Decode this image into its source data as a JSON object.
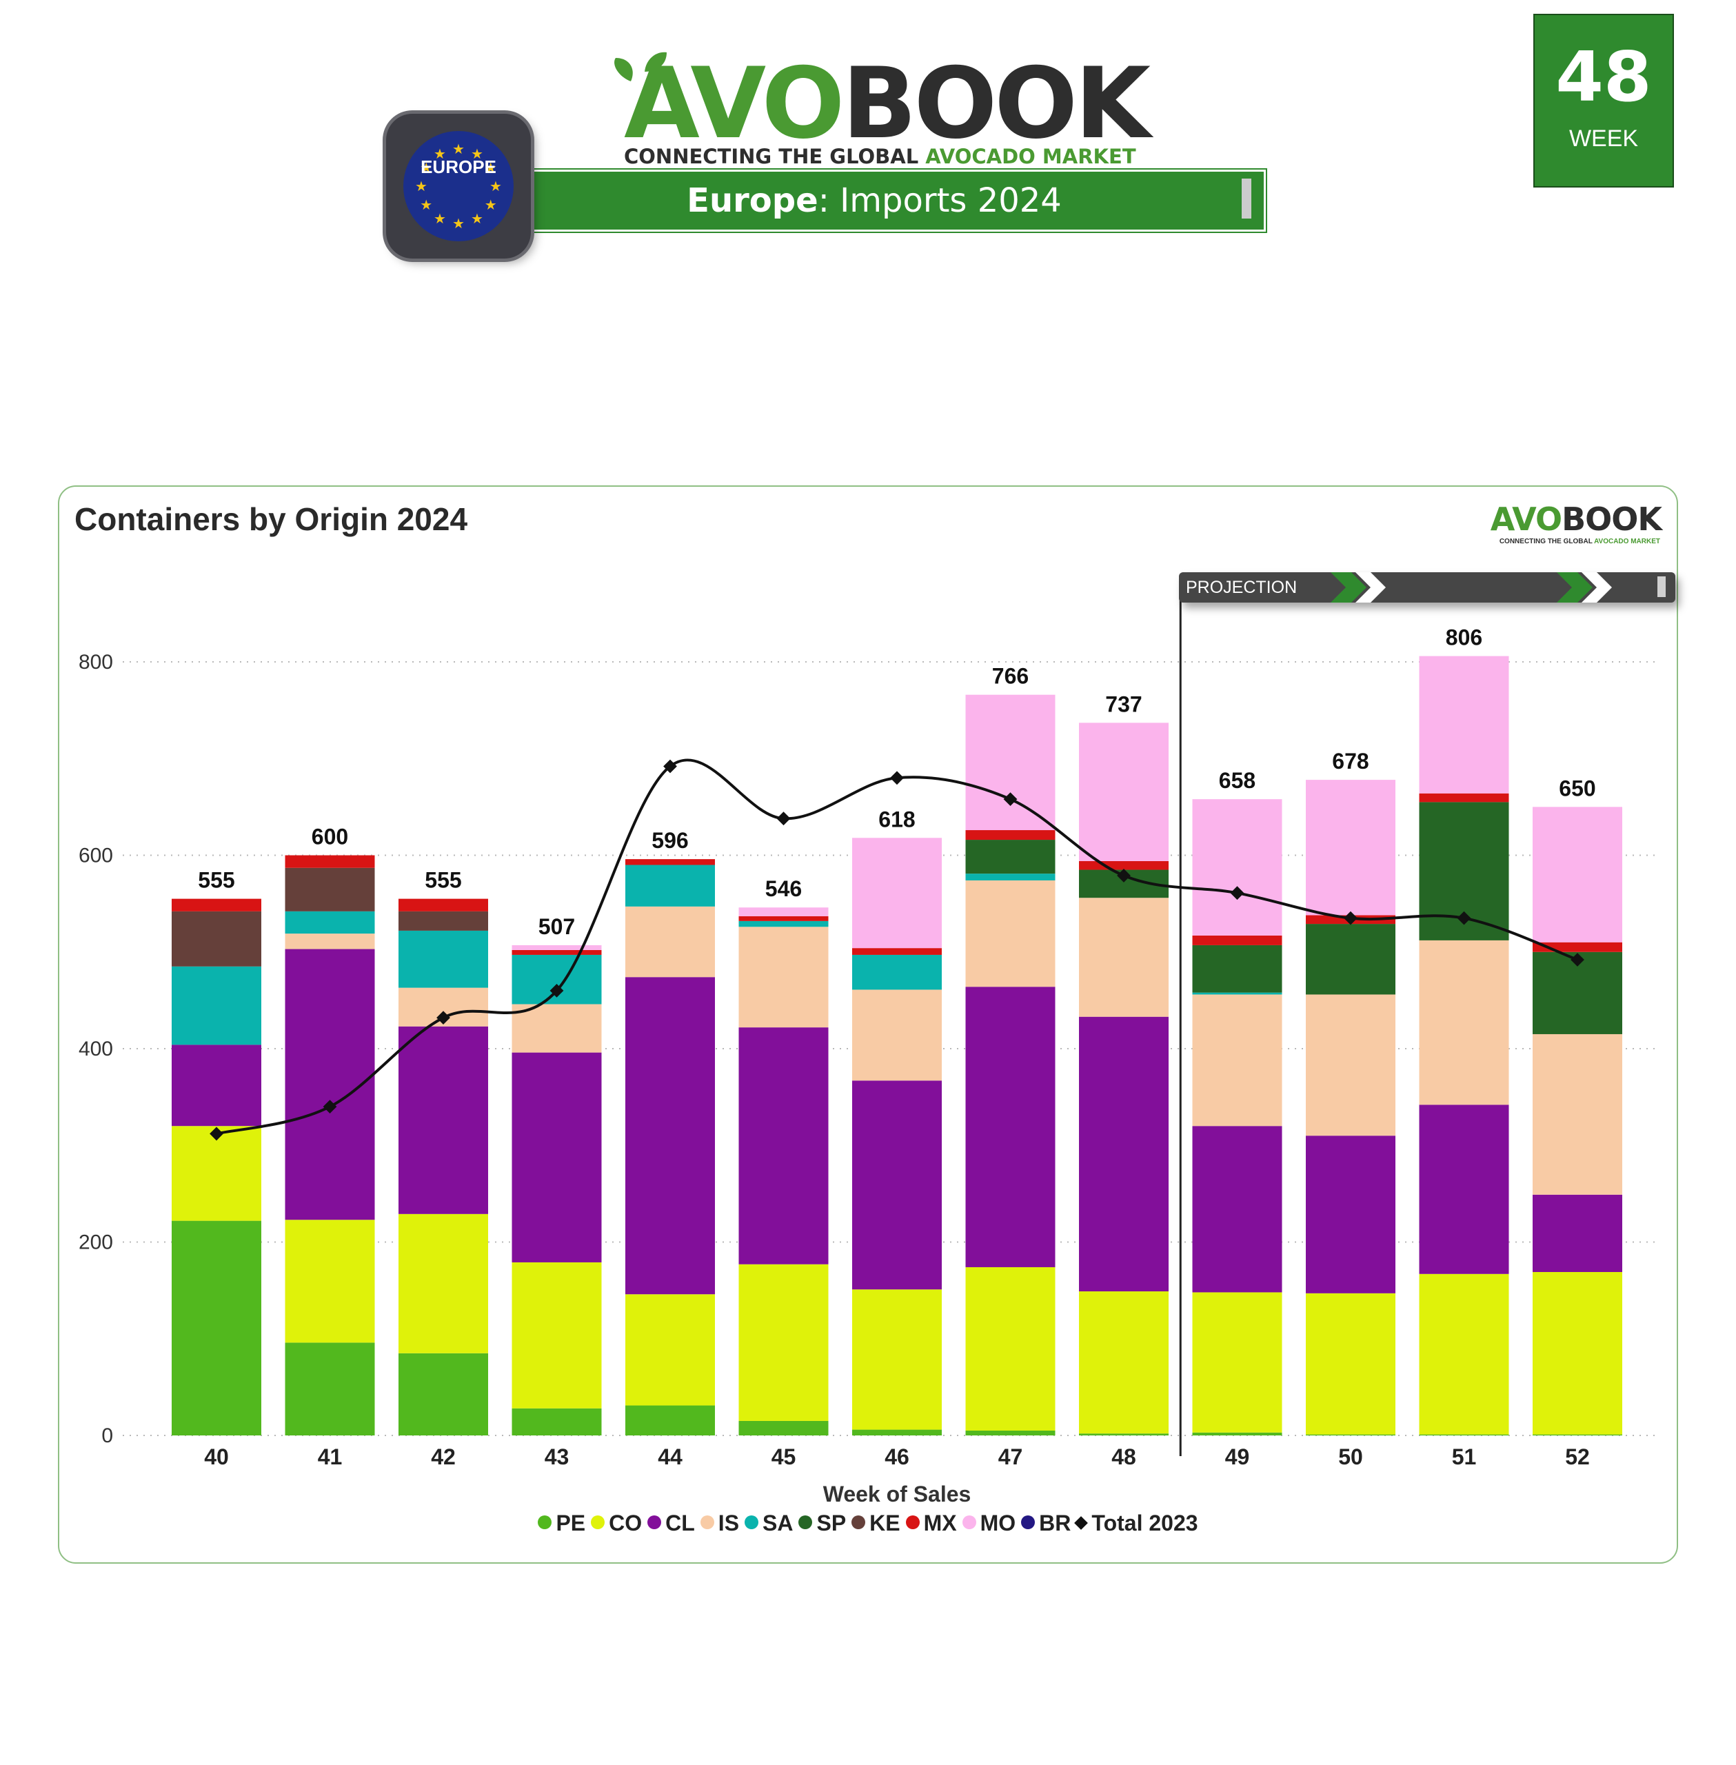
{
  "header": {
    "logo_green": "AVO",
    "logo_dark": "BOOK",
    "tagline_dark": "CONNECTING THE GLOBAL ",
    "tagline_green": "AVOCADO MARKET",
    "title_bold": "Europe",
    "title_rest": ": Imports 2024",
    "region_badge": "EUROPE",
    "week_number": "48",
    "week_label": "WEEK"
  },
  "chart_card": {
    "title": "Containers by Origin 2024",
    "projection_label": "PROJECTION"
  },
  "colors": {
    "brand_green": "#2f8a2e",
    "PE": "#52b81e",
    "CO": "#dff20a",
    "CL": "#820f9a",
    "IS": "#f8cba5",
    "SA": "#0ab3ad",
    "SP": "#256625",
    "KE": "#65403a",
    "MX": "#d81414",
    "MO": "#fbb4ec",
    "BR": "#231883",
    "total_line": "#111111"
  },
  "chart_data": {
    "type": "bar",
    "stacked": true,
    "title": "Containers by Origin 2024",
    "xlabel": "Week of Sales",
    "ylabel": "",
    "ylim": [
      0,
      900
    ],
    "yticks": [
      0,
      200,
      400,
      600,
      800
    ],
    "grid": true,
    "projection_from_week": "49",
    "categories": [
      "40",
      "41",
      "42",
      "43",
      "44",
      "45",
      "46",
      "47",
      "48",
      "49",
      "50",
      "51",
      "52"
    ],
    "series": [
      {
        "name": "PE",
        "values": [
          222,
          96,
          85,
          28,
          31,
          15,
          6,
          5,
          2,
          3,
          1,
          1,
          1
        ]
      },
      {
        "name": "CO",
        "values": [
          98,
          127,
          144,
          151,
          115,
          162,
          145,
          169,
          147,
          145,
          146,
          166,
          168
        ]
      },
      {
        "name": "CL",
        "values": [
          84,
          280,
          194,
          217,
          328,
          245,
          216,
          290,
          284,
          172,
          163,
          175,
          80
        ]
      },
      {
        "name": "IS",
        "values": [
          0,
          16,
          40,
          50,
          73,
          104,
          94,
          110,
          123,
          136,
          146,
          170,
          166
        ]
      },
      {
        "name": "SA",
        "values": [
          81,
          23,
          59,
          51,
          43,
          6,
          36,
          7,
          0,
          2,
          0,
          0,
          0
        ]
      },
      {
        "name": "SP",
        "values": [
          0,
          0,
          0,
          0,
          0,
          0,
          0,
          35,
          29,
          49,
          73,
          143,
          85
        ]
      },
      {
        "name": "KE",
        "values": [
          57,
          45,
          20,
          0,
          0,
          0,
          0,
          0,
          0,
          0,
          0,
          0,
          0
        ]
      },
      {
        "name": "MX",
        "values": [
          13,
          13,
          13,
          5,
          6,
          5,
          7,
          10,
          9,
          10,
          9,
          9,
          10
        ]
      },
      {
        "name": "MO",
        "values": [
          0,
          0,
          0,
          5,
          0,
          9,
          114,
          140,
          143,
          141,
          140,
          142,
          140
        ]
      },
      {
        "name": "BR",
        "values": [
          0,
          0,
          0,
          0,
          0,
          0,
          0,
          0,
          0,
          0,
          0,
          0,
          0
        ]
      }
    ],
    "totals": [
      555,
      600,
      555,
      507,
      596,
      546,
      618,
      766,
      737,
      658,
      678,
      806,
      650
    ],
    "line": {
      "name": "Total 2023",
      "values": [
        312,
        340,
        432,
        460,
        692,
        638,
        680,
        658,
        579,
        561,
        535,
        535,
        492
      ]
    },
    "legend": [
      "PE",
      "CO",
      "CL",
      "IS",
      "SA",
      "SP",
      "KE",
      "MX",
      "MO",
      "BR",
      "Total 2023"
    ]
  }
}
